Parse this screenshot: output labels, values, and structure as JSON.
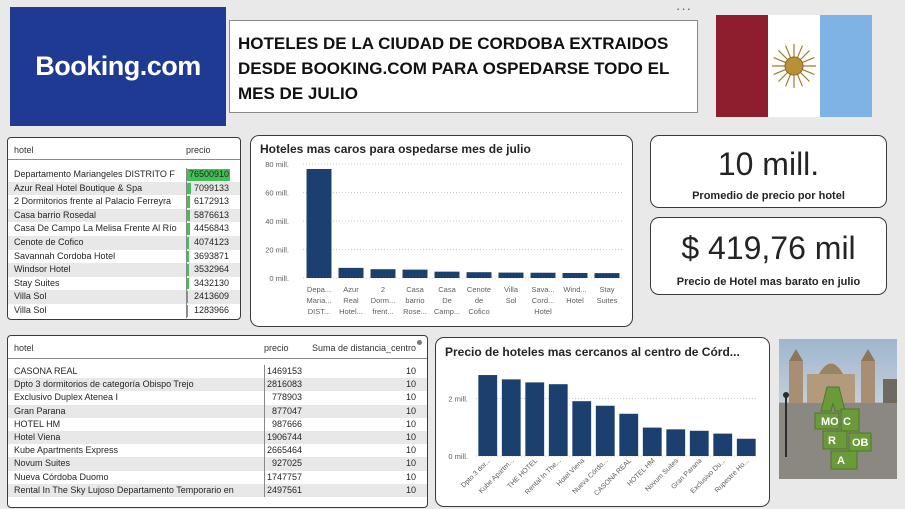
{
  "logo": {
    "text": "Booking.com",
    "bg": "#1f3a93"
  },
  "title": {
    "line1": "HOTELES DE LA CIUDAD DE CORDOBA EXTRAIDOS",
    "line2": "DESDE BOOKING.COM PARA OSPEDARSE TODO EL",
    "line3": "MES DE JULIO"
  },
  "menu": {
    "dots": "···"
  },
  "flag": {
    "colors": [
      "#8e1d2e",
      "#ffffff",
      "#7fb2e5"
    ],
    "emblem": "sun-icon"
  },
  "table1": {
    "headers": {
      "hotel": "hotel",
      "precio": "precio"
    },
    "max": 76500910,
    "rows": [
      {
        "hotel": "Departamento Mariangeles DISTRITO F",
        "precio": "76500910",
        "value": 76500910
      },
      {
        "hotel": "Azur Real Hotel Boutique & Spa",
        "precio": "7099133",
        "value": 7099133
      },
      {
        "hotel": "2 Dormitorios frente al Palacio Ferreyra",
        "precio": "6172913",
        "value": 6172913
      },
      {
        "hotel": "Casa barrio Rosedal",
        "precio": "5876613",
        "value": 5876613
      },
      {
        "hotel": "Casa De Campo La Melisa Frente Al Río",
        "precio": "4456843",
        "value": 4456843
      },
      {
        "hotel": "Cenote de Cofico",
        "precio": "4074123",
        "value": 4074123
      },
      {
        "hotel": "Savannah Cordoba Hotel",
        "precio": "3693871",
        "value": 3693871
      },
      {
        "hotel": "Windsor Hotel",
        "precio": "3532964",
        "value": 3532964
      },
      {
        "hotel": "Stay Suites",
        "precio": "3432130",
        "value": 3432130
      },
      {
        "hotel": "Villa Sol",
        "precio": "2413609",
        "value": 2413609
      },
      {
        "hotel": "Villa Sol",
        "precio": "1283966",
        "value": 1283966
      }
    ]
  },
  "kpi": {
    "promedio_value": "10 mill.",
    "promedio_label": "Promedio de precio por hotel",
    "barato_value": "$ 419,76 mil",
    "barato_label": "Precio de Hotel mas barato en julio"
  },
  "table2": {
    "headers": {
      "hotel": "hotel",
      "precio": "precio",
      "distancia": "Suma de distancia_centro"
    },
    "rows": [
      {
        "hotel": "CASONA REAL",
        "precio": "1469153",
        "distancia": "10"
      },
      {
        "hotel": "Dpto 3 dormitorios de categoría Obispo Trejo",
        "precio": "2816083",
        "distancia": "10"
      },
      {
        "hotel": "Exclusivo Duplex Atenea I",
        "precio": "778903",
        "distancia": "10"
      },
      {
        "hotel": "Gran Parana",
        "precio": "877047",
        "distancia": "10"
      },
      {
        "hotel": "HOTEL HM",
        "precio": "987666",
        "distancia": "10"
      },
      {
        "hotel": "Hotel Viena",
        "precio": "1906744",
        "distancia": "10"
      },
      {
        "hotel": "Kube Apartments Express",
        "precio": "2665464",
        "distancia": "10"
      },
      {
        "hotel": "Novum Suites",
        "precio": "927025",
        "distancia": "10"
      },
      {
        "hotel": "Nueva Córdoba Duomo",
        "precio": "1747757",
        "distancia": "10"
      },
      {
        "hotel": "Rental In The Sky Lujoso Departamento Temporario en",
        "precio": "2497561",
        "distancia": "10"
      }
    ]
  },
  "photo": {
    "icon": "cordoba-monument-photo",
    "letters": "CÓRDOBA"
  },
  "chart_data": [
    {
      "type": "bar",
      "title": "Hoteles mas caros para ospedarse mes de julio",
      "ylim": [
        0,
        80000000
      ],
      "yticks": [
        0,
        20000000,
        40000000,
        60000000,
        80000000
      ],
      "ytick_labels": [
        "0 mill.",
        "20 mill.",
        "40 mill.",
        "60 mill.",
        "80 mill."
      ],
      "grid": true,
      "bar_color": "#1b3f6e",
      "categories": [
        [
          "Depa...",
          "Maria...",
          "DIST..."
        ],
        [
          "Azur",
          "Real",
          "Hotel..."
        ],
        [
          "2",
          "Dorm...",
          "frent..."
        ],
        [
          "Casa",
          "barrio",
          "Rose..."
        ],
        [
          "Casa",
          "De",
          "Camp..."
        ],
        [
          "Cenote",
          "de",
          "Cofico"
        ],
        [
          "Villa",
          "Sol"
        ],
        [
          "Sava...",
          "Cord...",
          "Hotel"
        ],
        [
          "Wind...",
          "Hotel"
        ],
        [
          "Stay",
          "Suites"
        ]
      ],
      "values": [
        76500910,
        7099133,
        6172913,
        5876613,
        4456843,
        4074123,
        3800000,
        3693871,
        3532964,
        3432130
      ]
    },
    {
      "type": "bar",
      "title": "Precio de hoteles mas cercanos al centro de Córd...",
      "ylim": [
        0,
        3200000
      ],
      "yticks": [
        0,
        2000000
      ],
      "ytick_labels": [
        "0 mill.",
        "2 mill."
      ],
      "grid": true,
      "bar_color": "#1b3f6e",
      "categories": [
        "Dpto 3 dor...",
        "Kube Apartm...",
        "THE HOTEL",
        "Rental In The...",
        "Hotel Viena",
        "Nueva Córdo...",
        "CASONA REAL",
        "HOTEL HM",
        "Novum Suites",
        "Gran Parana",
        "Exclusivo Du...",
        "Rupestre Ho..."
      ],
      "values": [
        2816083,
        2665464,
        2560000,
        2497561,
        1906744,
        1747757,
        1469153,
        987666,
        927025,
        877047,
        778903,
        600000
      ]
    }
  ]
}
